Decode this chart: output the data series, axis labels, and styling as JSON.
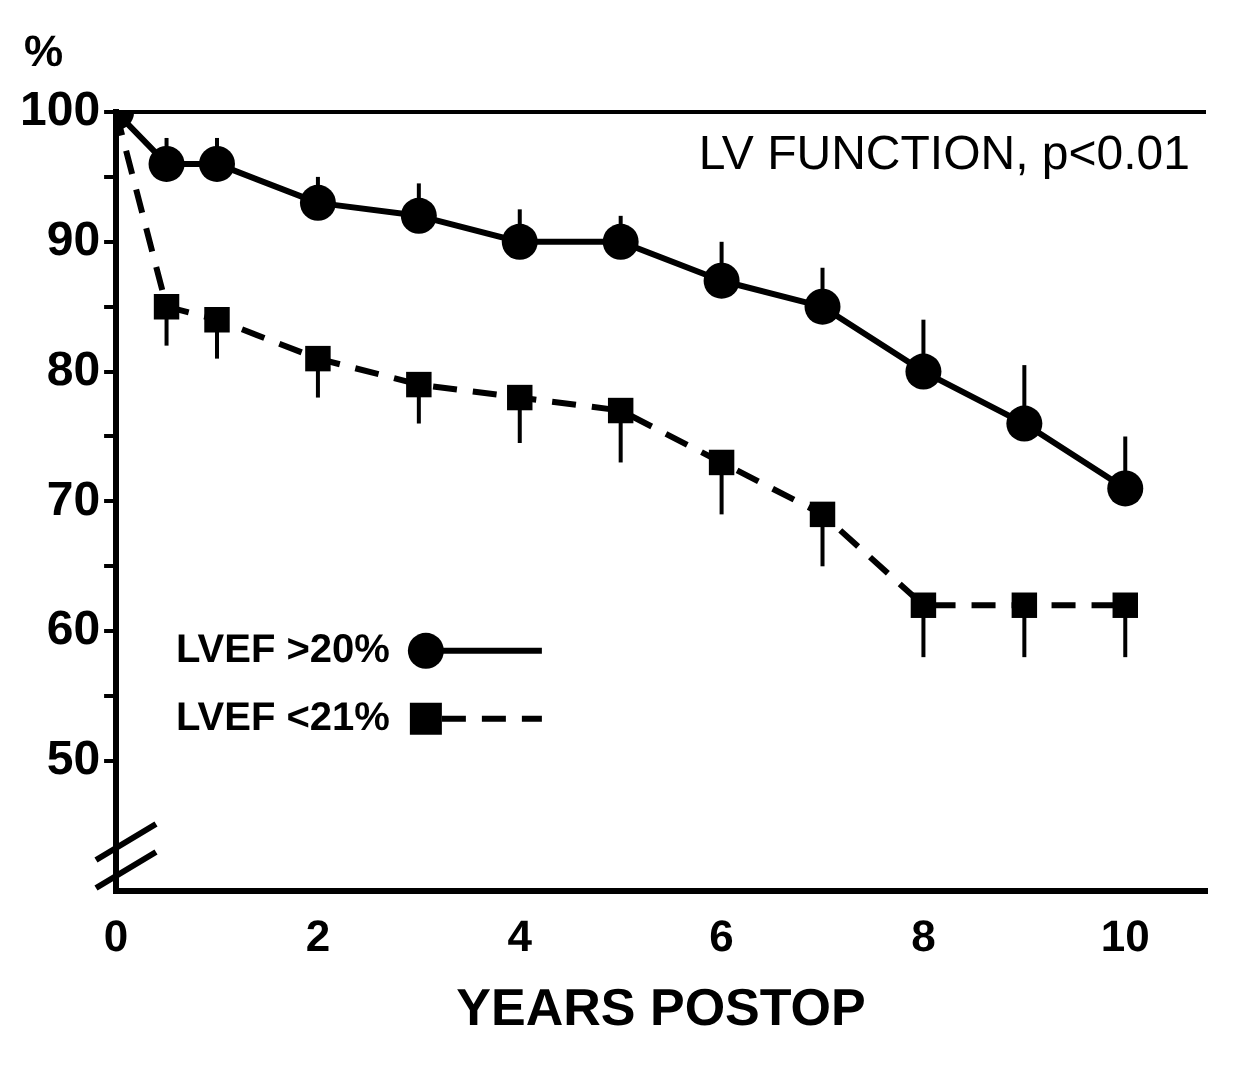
{
  "chart_data": {
    "type": "line",
    "ylabel": "%",
    "xlabel": "YEARS POSTOP",
    "annotations": [
      "LV FUNCTION, p<0.01"
    ],
    "xlim": [
      0,
      10.8
    ],
    "xticks": [
      0,
      2,
      4,
      6,
      8,
      10
    ],
    "ylim": [
      40,
      100
    ],
    "yticks": [
      50,
      {
        "value": 55,
        "label": null
      },
      60,
      {
        "value": 65,
        "label": null
      },
      70,
      {
        "value": 75,
        "label": null
      },
      80,
      {
        "value": 85,
        "label": null
      },
      90,
      {
        "value": 95,
        "label": null
      },
      100
    ],
    "grid": false,
    "legend": "bottom left",
    "series": [
      {
        "name": "LVEF >20%",
        "color": "#000000",
        "marker": "circle",
        "line_style": "solid",
        "x": [
          0,
          0.5,
          1,
          2,
          3,
          4,
          5,
          6,
          7,
          8,
          9,
          10
        ],
        "values": [
          100,
          96,
          96,
          93,
          92,
          90,
          90,
          87,
          85,
          80,
          76,
          71
        ],
        "errors": [
          null,
          [
            96,
            98
          ],
          [
            96,
            98
          ],
          [
            93,
            95
          ],
          [
            92,
            94.5
          ],
          [
            90,
            92.5
          ],
          [
            90,
            92
          ],
          [
            87,
            90
          ],
          [
            85,
            88
          ],
          [
            80,
            84
          ],
          [
            76,
            80.5
          ],
          [
            71,
            75
          ]
        ]
      },
      {
        "name": "LVEF <21%",
        "color": "#000000",
        "marker": "square",
        "line_style": "dashed",
        "x": [
          0,
          0.5,
          1,
          2,
          3,
          4,
          5,
          6,
          7,
          8,
          9,
          10
        ],
        "values": [
          100,
          85,
          84,
          81,
          79,
          78,
          77,
          73,
          69,
          62,
          62,
          62
        ],
        "errors": [
          null,
          [
            82,
            85
          ],
          [
            81,
            84
          ],
          [
            78,
            81
          ],
          [
            76,
            79
          ],
          [
            74.5,
            78
          ],
          [
            73,
            77
          ],
          [
            69,
            73
          ],
          [
            65,
            69
          ],
          [
            58,
            62
          ],
          [
            58,
            62
          ],
          [
            58,
            62
          ]
        ]
      }
    ]
  }
}
